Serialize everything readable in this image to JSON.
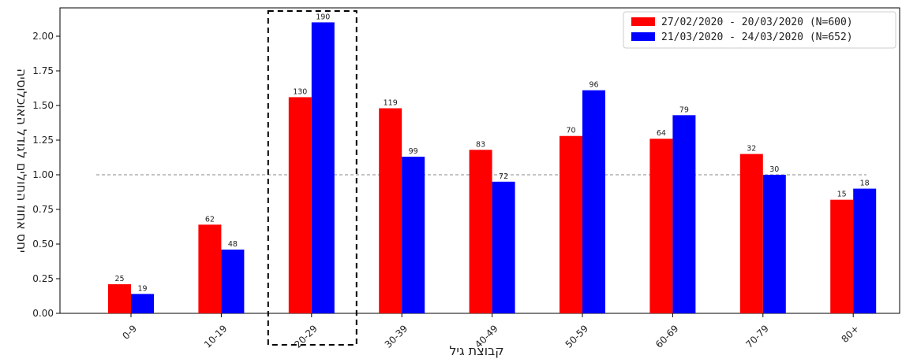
{
  "chart_data": {
    "type": "bar",
    "xlabel": "קבוצת גיל",
    "ylabel": "יחס אחוז החולים לגודל האוכלוסיה",
    "categories": [
      "0-9",
      "10-19",
      "20-29",
      "30-39",
      "40-49",
      "50-59",
      "60-69",
      "70-79",
      "80+"
    ],
    "series": [
      {
        "name": "27/02/2020 - 20/03/2020 (N=600)",
        "color": "#ff0000",
        "values": [
          0.21,
          0.64,
          1.56,
          1.48,
          1.18,
          1.28,
          1.26,
          1.15,
          0.82
        ],
        "labels": [
          "25",
          "62",
          "130",
          "119",
          "83",
          "70",
          "64",
          "32",
          "15"
        ]
      },
      {
        "name": "21/03/2020 - 24/03/2020 (N=652)",
        "color": "#0000ff",
        "values": [
          0.14,
          0.46,
          2.1,
          1.13,
          0.95,
          1.61,
          1.43,
          1.0,
          0.9
        ],
        "labels": [
          "19",
          "48",
          "190",
          "99",
          "72",
          "96",
          "79",
          "30",
          "18"
        ]
      }
    ],
    "ylim": [
      0,
      2.2
    ],
    "yticks": [
      "0.00",
      "0.25",
      "0.50",
      "0.75",
      "1.00",
      "1.25",
      "1.50",
      "1.75",
      "2.00"
    ],
    "reference_line": 1.0,
    "highlight_category": "20-29",
    "legend_position": "top-right",
    "grid": false
  }
}
